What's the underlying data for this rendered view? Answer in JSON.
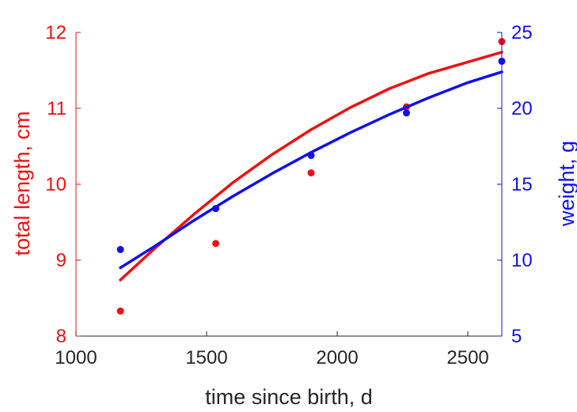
{
  "chart_data": {
    "type": "line",
    "title": "",
    "xlabel": "time since birth, d",
    "xlim": [
      1000,
      2630
    ],
    "xticks": [
      1000,
      1500,
      2000,
      2500
    ],
    "y_left": {
      "label": "total length, cm",
      "color": "#ee1111",
      "lim": [
        8,
        12
      ],
      "ticks": [
        8,
        9,
        10,
        11,
        12
      ]
    },
    "y_right": {
      "label": "weight, g",
      "color": "#1010ee",
      "lim": [
        5,
        25
      ],
      "ticks": [
        5,
        10,
        15,
        20,
        25
      ]
    },
    "grid": false,
    "legend": "none",
    "series": [
      {
        "axis": "left",
        "color": "#ee1111",
        "points": [
          [
            1170,
            8.33
          ],
          [
            1535,
            9.22
          ],
          [
            1900,
            10.15
          ],
          [
            2265,
            11.02
          ],
          [
            2630,
            11.88
          ]
        ],
        "curve": [
          [
            1170,
            8.74
          ],
          [
            1300,
            9.15
          ],
          [
            1450,
            9.6
          ],
          [
            1600,
            10.02
          ],
          [
            1750,
            10.39
          ],
          [
            1900,
            10.72
          ],
          [
            2050,
            11.01
          ],
          [
            2200,
            11.26
          ],
          [
            2350,
            11.46
          ],
          [
            2500,
            11.61
          ],
          [
            2630,
            11.74
          ]
        ]
      },
      {
        "axis": "right",
        "color": "#1010ee",
        "points": [
          [
            1170,
            10.7
          ],
          [
            1535,
            13.4
          ],
          [
            1900,
            16.9
          ],
          [
            2265,
            19.7
          ],
          [
            2630,
            23.1
          ]
        ],
        "curve": [
          [
            1170,
            9.5
          ],
          [
            1300,
            10.9
          ],
          [
            1450,
            12.6
          ],
          [
            1600,
            14.2
          ],
          [
            1750,
            15.7
          ],
          [
            1900,
            17.1
          ],
          [
            2050,
            18.4
          ],
          [
            2200,
            19.6
          ],
          [
            2350,
            20.7
          ],
          [
            2500,
            21.7
          ],
          [
            2630,
            22.4
          ]
        ]
      }
    ]
  }
}
